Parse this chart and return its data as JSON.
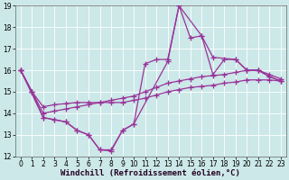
{
  "xlabel": "Windchill (Refroidissement éolien,°C)",
  "background_color": "#cce8e8",
  "line_color": "#993399",
  "grid_color": "#aadddd",
  "xlim": [
    -0.5,
    23.5
  ],
  "ylim": [
    12,
    19
  ],
  "xticks": [
    0,
    1,
    2,
    3,
    4,
    5,
    6,
    7,
    8,
    9,
    10,
    11,
    12,
    13,
    14,
    15,
    16,
    17,
    18,
    19,
    20,
    21,
    22,
    23
  ],
  "yticks": [
    12,
    13,
    14,
    15,
    16,
    17,
    18,
    19
  ],
  "lines": [
    {
      "x": [
        0,
        1,
        2,
        3,
        4,
        5,
        6,
        7,
        8,
        9,
        10,
        11,
        12,
        13,
        14,
        15,
        16,
        17,
        18,
        19,
        20,
        21,
        22,
        23
      ],
      "y": [
        16,
        15,
        13.8,
        13.7,
        13.6,
        13.2,
        13.0,
        12.3,
        12.3,
        13.2,
        13.5,
        16.3,
        16.5,
        16.5,
        19.0,
        17.5,
        17.6,
        15.8,
        16.5,
        16.5,
        16.0,
        16.0,
        15.7,
        15.5
      ]
    },
    {
      "x": [
        0,
        1,
        2,
        3,
        4,
        5,
        6,
        7,
        8,
        9,
        10,
        11,
        12,
        13,
        14,
        15,
        16,
        17,
        18,
        19,
        20,
        21,
        22,
        23
      ],
      "y": [
        16,
        15,
        14.0,
        14.1,
        14.2,
        14.3,
        14.4,
        14.5,
        14.6,
        14.7,
        14.8,
        15.0,
        15.2,
        15.4,
        15.5,
        15.6,
        15.7,
        15.75,
        15.8,
        15.9,
        16.0,
        16.0,
        15.8,
        15.6
      ]
    },
    {
      "x": [
        0,
        1,
        2,
        3,
        4,
        5,
        6,
        7,
        8,
        9,
        10,
        11,
        12,
        13,
        14,
        15,
        16,
        17,
        18,
        19,
        20,
        21,
        22,
        23
      ],
      "y": [
        16,
        15,
        14.3,
        14.4,
        14.45,
        14.5,
        14.5,
        14.5,
        14.5,
        14.5,
        14.6,
        14.7,
        14.85,
        15.0,
        15.1,
        15.2,
        15.25,
        15.3,
        15.4,
        15.45,
        15.55,
        15.55,
        15.55,
        15.5
      ]
    },
    {
      "x": [
        0,
        2,
        3,
        4,
        5,
        6,
        7,
        8,
        9,
        10,
        13,
        14,
        16,
        17,
        19,
        20,
        21,
        22,
        23
      ],
      "y": [
        16,
        13.8,
        13.7,
        13.6,
        13.2,
        13.0,
        12.3,
        12.25,
        13.2,
        13.5,
        16.4,
        19.0,
        17.6,
        16.6,
        16.5,
        16.0,
        16.0,
        15.7,
        15.5
      ]
    }
  ],
  "marker": "+",
  "marker_size": 5,
  "linewidth": 0.9,
  "tick_fontsize": 5.5,
  "xlabel_fontsize": 6.5
}
